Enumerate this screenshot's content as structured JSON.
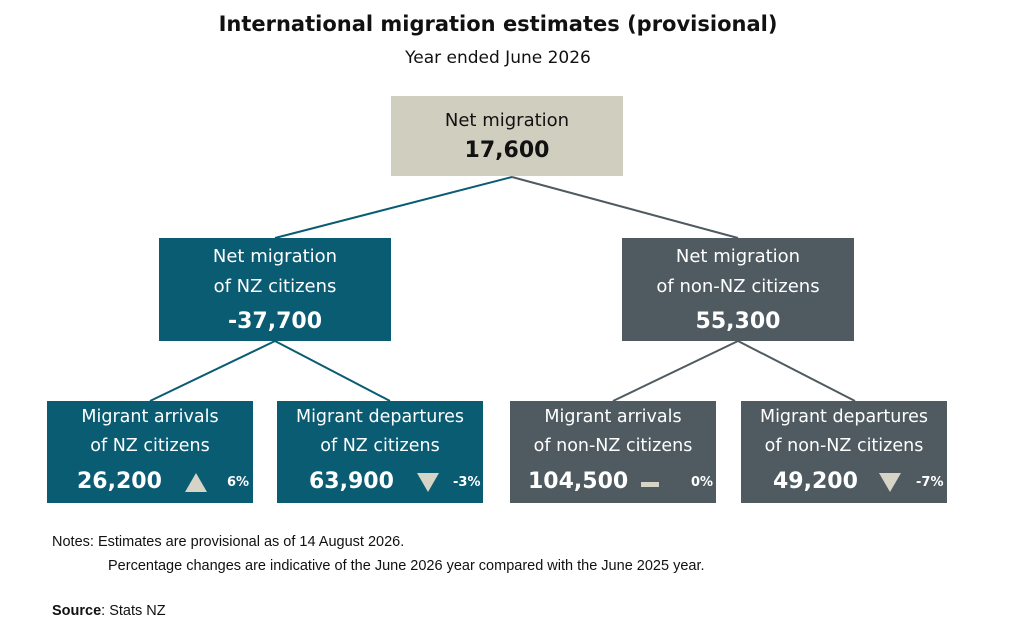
{
  "title": "International migration estimates (provisional)",
  "subtitle": "Year ended June 2026",
  "root": {
    "label": "Net migration",
    "value": "17,600"
  },
  "nz_citizens": {
    "label_line1": "Net migration",
    "label_line2": "of NZ citizens",
    "value": "-37,700",
    "arrivals": {
      "label_line1": "Migrant arrivals",
      "label_line2": "of NZ citizens",
      "value": "26,200",
      "trend": "up",
      "pct": "6%"
    },
    "departures": {
      "label_line1": "Migrant departures",
      "label_line2": "of NZ citizens",
      "value": "63,900",
      "trend": "down",
      "pct": "-3%"
    }
  },
  "non_nz_citizens": {
    "label_line1": "Net migration",
    "label_line2": "of non-NZ citizens",
    "value": "55,300",
    "arrivals": {
      "label_line1": "Migrant arrivals",
      "label_line2": "of non-NZ citizens",
      "value": "104,500",
      "trend": "flat",
      "pct": "0%"
    },
    "departures": {
      "label_line1": "Migrant departures",
      "label_line2": "of non-NZ citizens",
      "value": "49,200",
      "trend": "down",
      "pct": "-7%"
    }
  },
  "colors": {
    "root_fill": "#cfcebf",
    "nz_fill": "#0a5c73",
    "non_nz_fill": "#4f5b61",
    "arrow_fill": "#d6d4c6"
  },
  "notes": {
    "prefix": "Notes:",
    "line1": "Estimates are provisional as of 14 August 2026.",
    "line2": "Percentage changes are indicative of the June 2026 year compared with the June 2025 year."
  },
  "source": {
    "label": "Source",
    "text": ": Stats NZ"
  }
}
